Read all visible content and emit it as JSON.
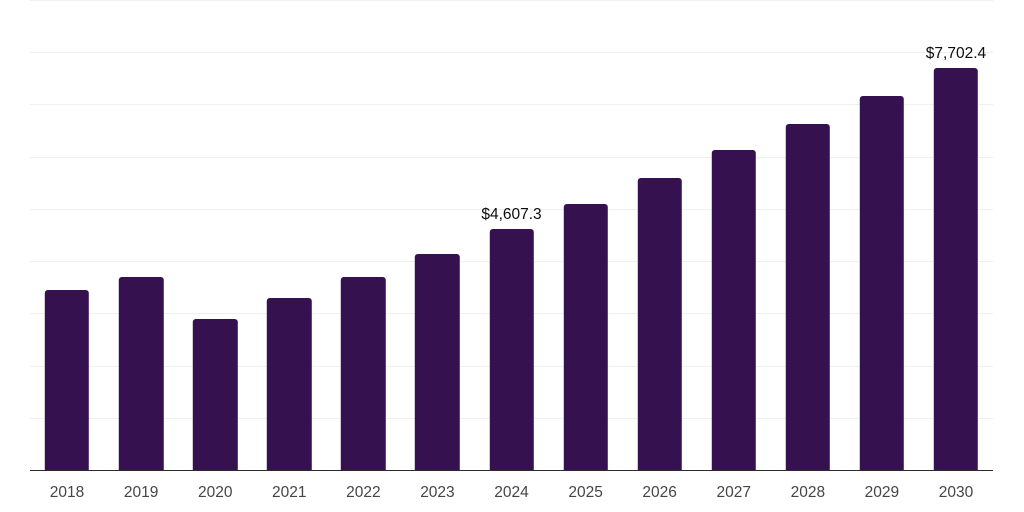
{
  "chart_data": {
    "type": "bar",
    "title": "",
    "xlabel": "",
    "ylabel": "",
    "categories": [
      "2018",
      "2019",
      "2020",
      "2021",
      "2022",
      "2023",
      "2024",
      "2025",
      "2026",
      "2027",
      "2028",
      "2029",
      "2030"
    ],
    "values": [
      3440,
      3700,
      2890,
      3300,
      3700,
      4130,
      4607.3,
      5090,
      5600,
      6120,
      6620,
      7170,
      7702.4
    ],
    "data_labels": [
      {
        "category": "2024",
        "text": "$4,607.3"
      },
      {
        "category": "2030",
        "text": "$7,702.4"
      }
    ],
    "ylim": [
      0,
      9000
    ],
    "gridline_interval": 1000,
    "grid": "horizontal-only",
    "legend": "none",
    "y_tick_labels_visible": false,
    "colors": {
      "bar": "#36114F",
      "axis_line": "#2b2b2b",
      "gridline": "#f0f0f2",
      "x_tick_label": "#454545",
      "data_label": "#0d0d0d",
      "background": "#ffffff"
    }
  }
}
